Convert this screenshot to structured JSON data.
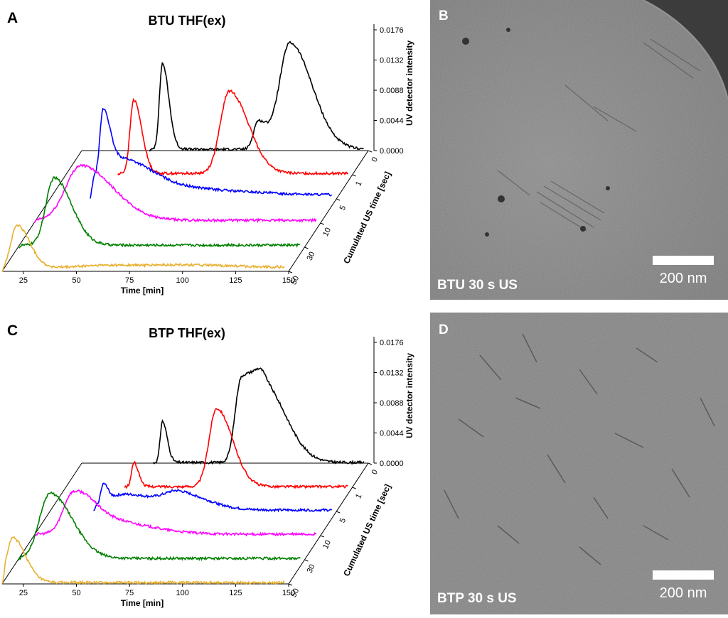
{
  "colors": {
    "0": "#000000",
    "1": "#ff0000",
    "5": "#0000ff",
    "10": "#ff00ff",
    "30": "#008000",
    "50": "#e8b030"
  },
  "chart_data": [
    {
      "panel": "A",
      "type": "line",
      "title": "BTU THF(ex)",
      "xlabel": "Time [min]",
      "ylabel": "UV detector intensity",
      "zlabel": "Cumulated US time [sec]",
      "xlim": [
        15,
        150
      ],
      "xticks": [
        25,
        50,
        75,
        100,
        125,
        150
      ],
      "ylim": [
        0,
        0.0176
      ],
      "yticks": [
        "0.0000",
        "0.0044",
        "0.0088",
        "0.0132",
        "0.0176"
      ],
      "zticks": [
        "0",
        "1",
        "5",
        "10",
        "30",
        "50"
      ],
      "series": [
        {
          "name": "0",
          "baseline": 0.0002,
          "peaks": [
            [
              53,
              0.0125,
              2
            ],
            [
              98,
              0.004,
              3
            ],
            [
              113,
              0.0155,
              7
            ]
          ]
        },
        {
          "name": "1",
          "baseline": 0.0002,
          "peaks": [
            [
              47,
              0.0107,
              2.5
            ],
            [
              92,
              0.012,
              6
            ]
          ]
        },
        {
          "name": "5",
          "baseline": 0.0006,
          "peaks": [
            [
              40,
              0.0082,
              2
            ],
            [
              46,
              0.0055,
              12
            ],
            [
              90,
              0.0006,
              15
            ]
          ]
        },
        {
          "name": "10",
          "baseline": 0.0004,
          "peaks": [
            [
              37,
              0.008,
              10
            ]
          ]
        },
        {
          "name": "30",
          "baseline": 0.0003,
          "peaks": [
            [
              32,
              0.0098,
              5.5
            ]
          ]
        },
        {
          "name": "50",
          "baseline": 0.0005,
          "peaks": [
            [
              22,
              0.0062,
              4
            ],
            [
              65,
              0.0004,
              18
            ],
            [
              105,
              0.0003,
              20
            ]
          ]
        }
      ]
    },
    {
      "panel": "C",
      "type": "line",
      "title": "BTP THF(ex)",
      "xlabel": "Time [min]",
      "ylabel": "UV detector intensity",
      "zlabel": "Cumulated US time [sec]",
      "xlim": [
        15,
        150
      ],
      "xticks": [
        25,
        50,
        75,
        100,
        125,
        150
      ],
      "ylim": [
        0,
        0.0176
      ],
      "yticks": [
        "0.0000",
        "0.0044",
        "0.0088",
        "0.0132",
        "0.0176"
      ],
      "zticks": [
        "0",
        "1",
        "5",
        "10",
        "30",
        "50"
      ],
      "series": [
        {
          "name": "0",
          "baseline": 0.0001,
          "peaks": [
            [
              53,
              0.006,
              1.5
            ],
            [
              90,
              0.0115,
              4
            ],
            [
              101,
              0.0108,
              7
            ]
          ]
        },
        {
          "name": "1",
          "baseline": 0.0001,
          "peaks": [
            [
              47,
              0.0035,
              1.5
            ],
            [
              86,
              0.0114,
              5
            ]
          ]
        },
        {
          "name": "5",
          "baseline": 0.0002,
          "peaks": [
            [
              40,
              0.0027,
              1.5
            ],
            [
              50,
              0.0023,
              12
            ],
            [
              76,
              0.002,
              9
            ]
          ]
        },
        {
          "name": "10",
          "baseline": 0.0002,
          "peaks": [
            [
              33,
              0.0051,
              6
            ],
            [
              45,
              0.0022,
              14
            ]
          ]
        },
        {
          "name": "30",
          "baseline": 0.0002,
          "peaks": [
            [
              30,
              0.0095,
              7
            ]
          ]
        },
        {
          "name": "50",
          "baseline": 0.0002,
          "peaks": [
            [
              20,
              0.0065,
              4
            ]
          ]
        }
      ]
    }
  ],
  "micrographs": [
    {
      "letter": "B",
      "caption": "BTU 30 s US",
      "scale": "200 nm"
    },
    {
      "letter": "D",
      "caption": "BTP 30 s US",
      "scale": "200 nm"
    }
  ]
}
